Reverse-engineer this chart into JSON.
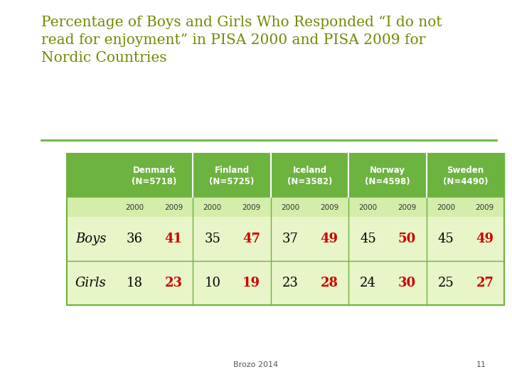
{
  "title": "Percentage of Boys and Girls Who Responded “I do not\nread for enjoyment” in PISA 2000 and PISA 2009 for\nNordic Countries",
  "title_color": "#6b8c00",
  "background_color": "#ffffff",
  "header_bg": "#6db33f",
  "header_text_color": "#ffffff",
  "subheader_bg": "#d4edaa",
  "row_bg": "#e8f5c8",
  "row_label_color": "#000000",
  "col_2000_color": "#000000",
  "col_2009_color": "#cc0000",
  "separator_color": "#6db33f",
  "footer_text": "Brozo 2014",
  "footer_page": "11",
  "columns": [
    {
      "label": "Denmark\n(N=5718)"
    },
    {
      "label": "Finland\n(N=5725)"
    },
    {
      "label": "Iceland\n(N=3582)"
    },
    {
      "label": "Norway\n(N=4598)"
    },
    {
      "label": "Sweden\n(N=4490)"
    }
  ],
  "rows": [
    {
      "label": "Boys",
      "values_2000": [
        36,
        35,
        37,
        45,
        45
      ],
      "values_2009": [
        41,
        47,
        49,
        50,
        49
      ]
    },
    {
      "label": "Girls",
      "values_2000": [
        18,
        10,
        23,
        24,
        25
      ],
      "values_2009": [
        23,
        19,
        28,
        30,
        27
      ]
    }
  ]
}
